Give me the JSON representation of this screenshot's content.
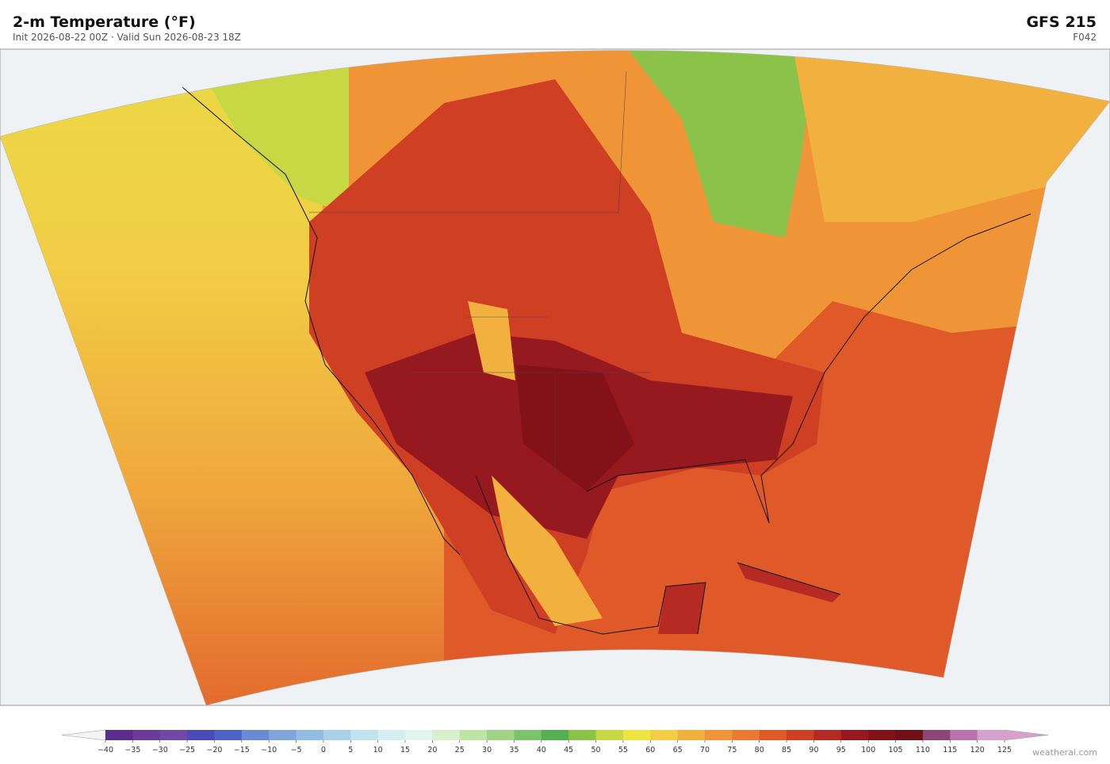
{
  "header": {
    "title": "2-m Temperature  (°F)",
    "subtitle": "Init 2026-08-22 00Z  ·  Valid Sun 2026-08-23 18Z",
    "model": "GFS  215",
    "forecast_hour": "F042",
    "credit": "weatherai.com"
  },
  "colorbar": {
    "ticks": [
      {
        "value": -40,
        "label": "−40"
      },
      {
        "value": -35,
        "label": "−35"
      },
      {
        "value": -30,
        "label": "−30"
      },
      {
        "value": -25,
        "label": "−25"
      },
      {
        "value": -20,
        "label": "−20"
      },
      {
        "value": -15,
        "label": "−15"
      },
      {
        "value": -10,
        "label": "−10"
      },
      {
        "value": -5,
        "label": "−5"
      },
      0,
      5,
      10,
      15,
      20,
      25,
      30,
      35,
      40,
      45,
      50,
      55,
      60,
      65,
      70,
      75,
      80,
      85,
      90,
      95,
      100,
      105,
      110,
      115,
      120,
      125
    ],
    "colors": [
      "#5a2d8e",
      "#6a3a9c",
      "#7048a8",
      "#4a4bb8",
      "#4e63c8",
      "#6a8bd4",
      "#7fa6dc",
      "#92bde3",
      "#a9d1ea",
      "#c1e2ef",
      "#d6edf2",
      "#e4f3ef",
      "#d8eecd",
      "#bfe3a4",
      "#9fd486",
      "#7cc46b",
      "#54b050",
      "#8bc34a",
      "#c8d845",
      "#ede541",
      "#f2cd45",
      "#f2b13e",
      "#ef9538",
      "#ea7a30",
      "#e05a29",
      "#cf3f24",
      "#b52a22",
      "#96191f",
      "#821218",
      "#6e1016",
      "#8f4676",
      "#bb72ad",
      "#d6a2cc"
    ]
  }
}
